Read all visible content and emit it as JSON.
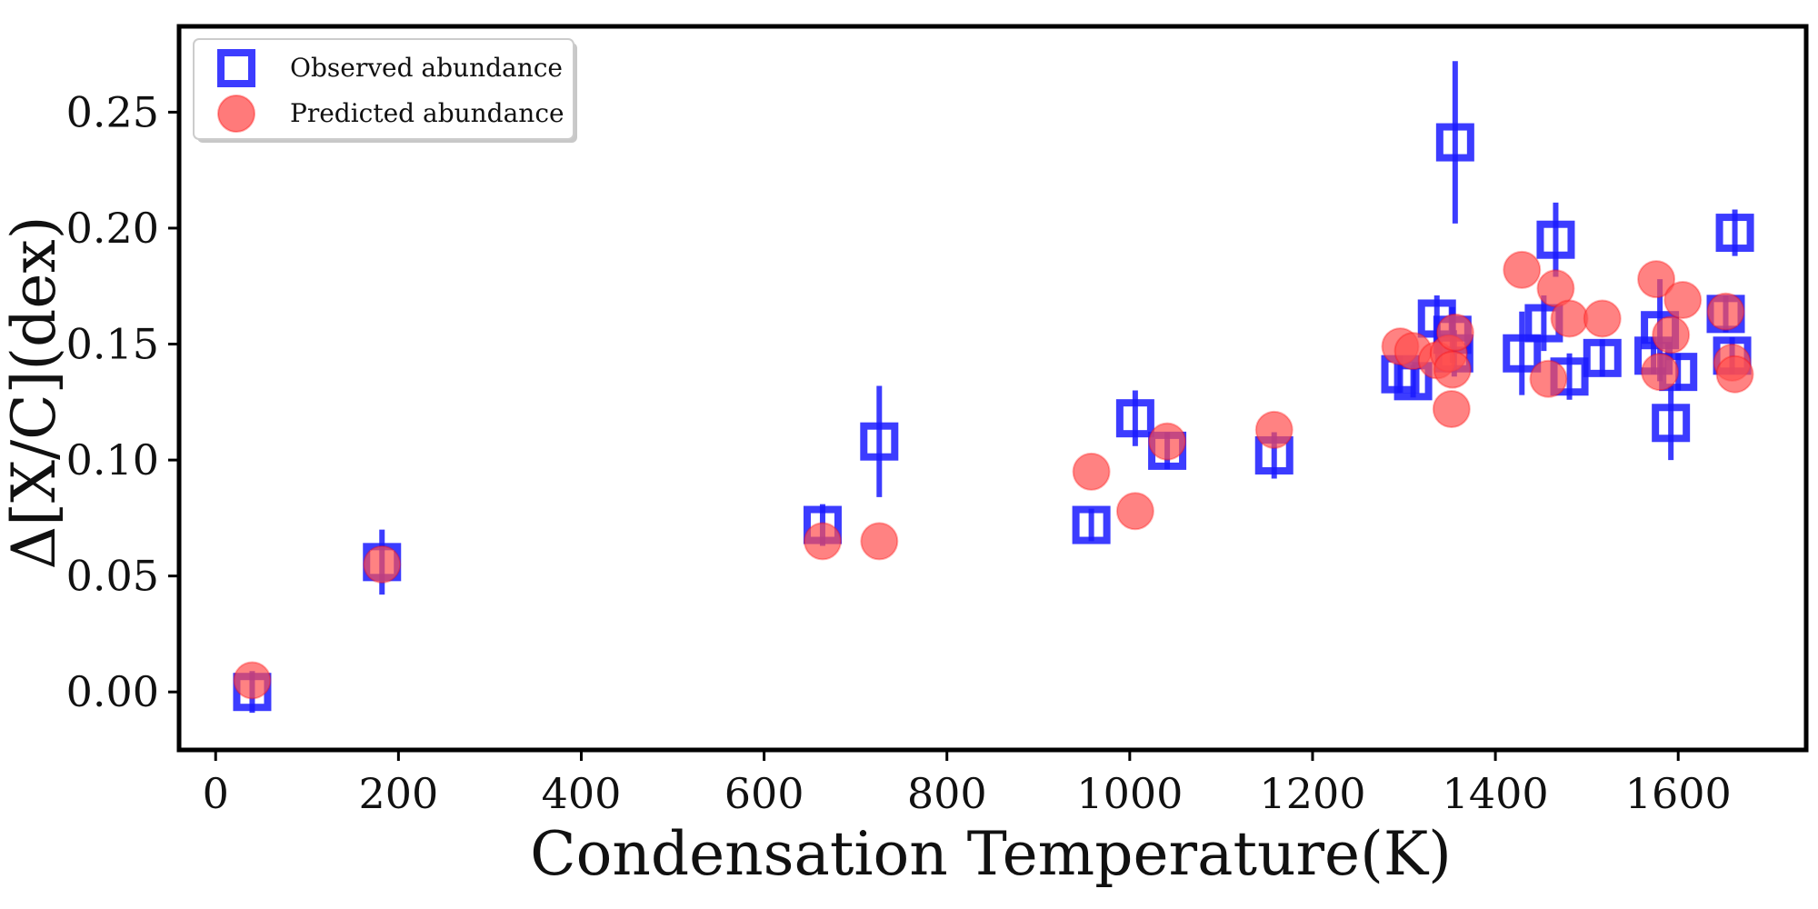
{
  "chart_data": {
    "type": "scatter",
    "xlabel": "Condensation Temperature(K)",
    "ylabel": "Δ[X/C](dex)",
    "xlim": [
      -40,
      1740
    ],
    "ylim": [
      -0.025,
      0.287
    ],
    "xticks": [
      0,
      200,
      400,
      600,
      800,
      1000,
      1200,
      1400,
      1600
    ],
    "xtick_labels": [
      "0",
      "200",
      "400",
      "600",
      "800",
      "1000",
      "1200",
      "1400",
      "1600"
    ],
    "yticks": [
      0.0,
      0.05,
      0.1,
      0.15,
      0.2,
      0.25
    ],
    "ytick_labels": [
      "0.00",
      "0.05",
      "0.10",
      "0.15",
      "0.20",
      "0.25"
    ],
    "grid": false,
    "legend_position": "top-left",
    "series": [
      {
        "name": "Observed abundance",
        "marker": "square",
        "color": "#1a1aff",
        "points": [
          {
            "x": 40,
            "y": 0.0,
            "err": 0.009
          },
          {
            "x": 182,
            "y": 0.056,
            "err": 0.014
          },
          {
            "x": 664,
            "y": 0.072,
            "err": 0.009
          },
          {
            "x": 726,
            "y": 0.108,
            "err": 0.024
          },
          {
            "x": 958,
            "y": 0.072,
            "err": 0.007
          },
          {
            "x": 1006,
            "y": 0.118,
            "err": 0.012
          },
          {
            "x": 1041,
            "y": 0.104,
            "err": 0.008
          },
          {
            "x": 1158,
            "y": 0.102,
            "err": 0.01
          },
          {
            "x": 1296,
            "y": 0.137,
            "err": 0.008
          },
          {
            "x": 1310,
            "y": 0.134,
            "err": 0.007
          },
          {
            "x": 1336,
            "y": 0.161,
            "err": 0.01
          },
          {
            "x": 1353,
            "y": 0.154,
            "err": 0.012
          },
          {
            "x": 1355,
            "y": 0.146,
            "err": 0.01
          },
          {
            "x": 1356,
            "y": 0.237,
            "err": 0.035
          },
          {
            "x": 1429,
            "y": 0.146,
            "err": 0.018
          },
          {
            "x": 1453,
            "y": 0.159,
            "err": 0.012
          },
          {
            "x": 1466,
            "y": 0.195,
            "err": 0.016
          },
          {
            "x": 1481,
            "y": 0.136,
            "err": 0.01
          },
          {
            "x": 1517,
            "y": 0.144,
            "err": 0.008
          },
          {
            "x": 1573,
            "y": 0.145,
            "err": 0.008
          },
          {
            "x": 1580,
            "y": 0.156,
            "err": 0.022
          },
          {
            "x": 1592,
            "y": 0.116,
            "err": 0.016
          },
          {
            "x": 1600,
            "y": 0.138,
            "err": 0.008
          },
          {
            "x": 1652,
            "y": 0.163,
            "err": 0.008
          },
          {
            "x": 1659,
            "y": 0.145,
            "err": 0.008
          },
          {
            "x": 1662,
            "y": 0.198,
            "err": 0.01
          }
        ]
      },
      {
        "name": "Predicted abundance",
        "marker": "circle",
        "color": "#ff4d4d",
        "points": [
          {
            "x": 40,
            "y": 0.005
          },
          {
            "x": 182,
            "y": 0.055
          },
          {
            "x": 664,
            "y": 0.065
          },
          {
            "x": 726,
            "y": 0.065
          },
          {
            "x": 958,
            "y": 0.095
          },
          {
            "x": 1006,
            "y": 0.078
          },
          {
            "x": 1041,
            "y": 0.108
          },
          {
            "x": 1158,
            "y": 0.113
          },
          {
            "x": 1296,
            "y": 0.149
          },
          {
            "x": 1310,
            "y": 0.147
          },
          {
            "x": 1336,
            "y": 0.143
          },
          {
            "x": 1349,
            "y": 0.146
          },
          {
            "x": 1352,
            "y": 0.122
          },
          {
            "x": 1353,
            "y": 0.139
          },
          {
            "x": 1356,
            "y": 0.155
          },
          {
            "x": 1429,
            "y": 0.182
          },
          {
            "x": 1458,
            "y": 0.135
          },
          {
            "x": 1466,
            "y": 0.174
          },
          {
            "x": 1481,
            "y": 0.161
          },
          {
            "x": 1517,
            "y": 0.161
          },
          {
            "x": 1576,
            "y": 0.178
          },
          {
            "x": 1580,
            "y": 0.138
          },
          {
            "x": 1592,
            "y": 0.154
          },
          {
            "x": 1605,
            "y": 0.169
          },
          {
            "x": 1652,
            "y": 0.164
          },
          {
            "x": 1659,
            "y": 0.142
          },
          {
            "x": 1662,
            "y": 0.137
          }
        ]
      }
    ]
  }
}
